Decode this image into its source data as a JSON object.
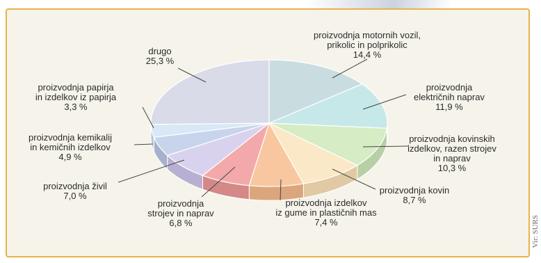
{
  "chart_data": {
    "type": "pie",
    "title": "",
    "slices": [
      {
        "lines": [
          "proizvodnja motornih vozil,",
          "prikolic in polprikolic",
          "14,4 %"
        ],
        "value": 14.4,
        "color": "#c9dde0",
        "side": "#a7c0c3"
      },
      {
        "lines": [
          "proizvodnja",
          "električnih naprav",
          "11,9 %"
        ],
        "value": 11.9,
        "color": "#c7e8e8",
        "side": "#a5c9ca"
      },
      {
        "lines": [
          "proizvodnja kovinskih",
          "izdelkov, razen strojev",
          "in naprav",
          "10,3 %"
        ],
        "value": 10.3,
        "color": "#d6ecc4",
        "side": "#b7cfa4"
      },
      {
        "lines": [
          "proizvodnja kovin",
          "8,7 %"
        ],
        "value": 8.7,
        "color": "#fbe8c6",
        "side": "#e0c9a3"
      },
      {
        "lines": [
          "proizvodnja izdelkov",
          "iz gume in plastičnih mas",
          "7,4 %"
        ],
        "value": 7.4,
        "color": "#f8c7a0",
        "side": "#dca67c"
      },
      {
        "lines": [
          "proizvodnja",
          "strojev in naprav",
          "6,8 %"
        ],
        "value": 6.8,
        "color": "#f3a9a9",
        "side": "#d48888"
      },
      {
        "lines": [
          "proizvodnja živil",
          "7,0 %"
        ],
        "value": 7.0,
        "color": "#d9d2ef",
        "side": "#b8b0d2"
      },
      {
        "lines": [
          "proizvodnja kemikalij",
          "in kemičnih izdelkov",
          "4,9 %"
        ],
        "value": 4.9,
        "color": "#c8d4ec",
        "side": "#a6b2cd"
      },
      {
        "lines": [
          "proizvodnja papirja",
          "in izdelkov iz papirja",
          "3,3 %"
        ],
        "value": 3.3,
        "color": "#d8e8f6",
        "side": "#b6c7d6"
      },
      {
        "lines": [
          "drugo",
          "25,3 %"
        ],
        "value": 25.3,
        "color": "#d9dbe9",
        "side": "#b9bbcb"
      }
    ]
  },
  "source_note": "Vir: SURS"
}
